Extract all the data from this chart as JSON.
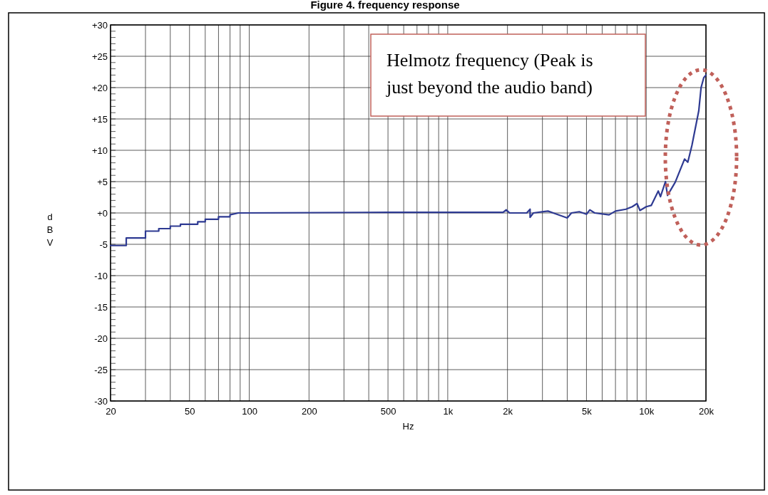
{
  "chart_data": {
    "type": "line",
    "title": "Figure 4. frequency response",
    "xlabel": "Hz",
    "ylabel": "dBV",
    "log": "x",
    "grid": true,
    "xlim": [
      20,
      20000
    ],
    "ylim": [
      -30,
      30
    ],
    "xticks": [
      20,
      {
        "value": 30,
        "label": null
      },
      {
        "value": 40,
        "label": null
      },
      50,
      {
        "value": 60,
        "label": null
      },
      {
        "value": 70,
        "label": null
      },
      {
        "value": 80,
        "label": null
      },
      {
        "value": 90,
        "label": null
      },
      100,
      200,
      {
        "value": 300,
        "label": null
      },
      {
        "value": 400,
        "label": null
      },
      500,
      {
        "value": 600,
        "label": null
      },
      {
        "value": 700,
        "label": null
      },
      {
        "value": 800,
        "label": null
      },
      {
        "value": 900,
        "label": null
      },
      {
        "value": 1000,
        "label": "1k"
      },
      {
        "value": 2000,
        "label": "2k"
      },
      {
        "value": 3000,
        "label": null
      },
      {
        "value": 4000,
        "label": null
      },
      {
        "value": 5000,
        "label": "5k"
      },
      {
        "value": 6000,
        "label": null
      },
      {
        "value": 7000,
        "label": null
      },
      {
        "value": 8000,
        "label": null
      },
      {
        "value": 9000,
        "label": null
      },
      {
        "value": 10000,
        "label": "10k"
      },
      {
        "value": 20000,
        "label": "20k"
      }
    ],
    "yticks": [
      {
        "value": -30,
        "label": "-30"
      },
      {
        "value": -25,
        "label": "-25"
      },
      {
        "value": -20,
        "label": "-20"
      },
      {
        "value": -15,
        "label": "-15"
      },
      {
        "value": -10,
        "label": "-10"
      },
      {
        "value": -5,
        "label": "-5"
      },
      {
        "value": 0,
        "label": "+0"
      },
      {
        "value": 5,
        "label": "+5"
      },
      {
        "value": 10,
        "label": "+10"
      },
      {
        "value": 15,
        "label": "+15"
      },
      {
        "value": 20,
        "label": "+20"
      },
      {
        "value": 25,
        "label": "+25"
      },
      {
        "value": 30,
        "label": "+30"
      }
    ],
    "series": [
      {
        "color": "#2e3a92",
        "x": [
          20,
          24,
          24,
          30,
          30,
          35,
          35,
          40,
          40,
          45,
          45,
          55,
          55,
          60,
          60,
          70,
          70,
          80,
          80,
          88,
          500,
          1900,
          1970,
          2050,
          2500,
          2600,
          2600,
          2700,
          3200,
          3400,
          4000,
          4200,
          4600,
          5000,
          5200,
          5500,
          6500,
          7000,
          7900,
          8500,
          9000,
          9300,
          10000,
          10600,
          11500,
          11800,
          12500,
          12800,
          14000,
          15600,
          16200,
          17000,
          18400,
          18900,
          19500,
          20000
        ],
        "values": [
          -5.2,
          -5.2,
          -4.0,
          -4.0,
          -2.9,
          -2.9,
          -2.5,
          -2.5,
          -2.1,
          -2.1,
          -1.8,
          -1.8,
          -1.4,
          -1.4,
          -1.0,
          -1.0,
          -0.6,
          -0.6,
          -0.3,
          0,
          0.1,
          0.1,
          0.5,
          0,
          0,
          0.6,
          -0.7,
          0,
          0.3,
          0,
          -0.8,
          0,
          0.2,
          -0.2,
          0.5,
          0,
          -0.3,
          0.3,
          0.6,
          1.0,
          1.5,
          0.4,
          1.0,
          1.2,
          3.5,
          2.6,
          5.0,
          2.8,
          4.9,
          8.6,
          8.1,
          10.8,
          16.3,
          20,
          21.6,
          22
        ]
      }
    ],
    "annotations": [
      "Helmotz frequency (Peak is just beyond the audio band)"
    ]
  }
}
